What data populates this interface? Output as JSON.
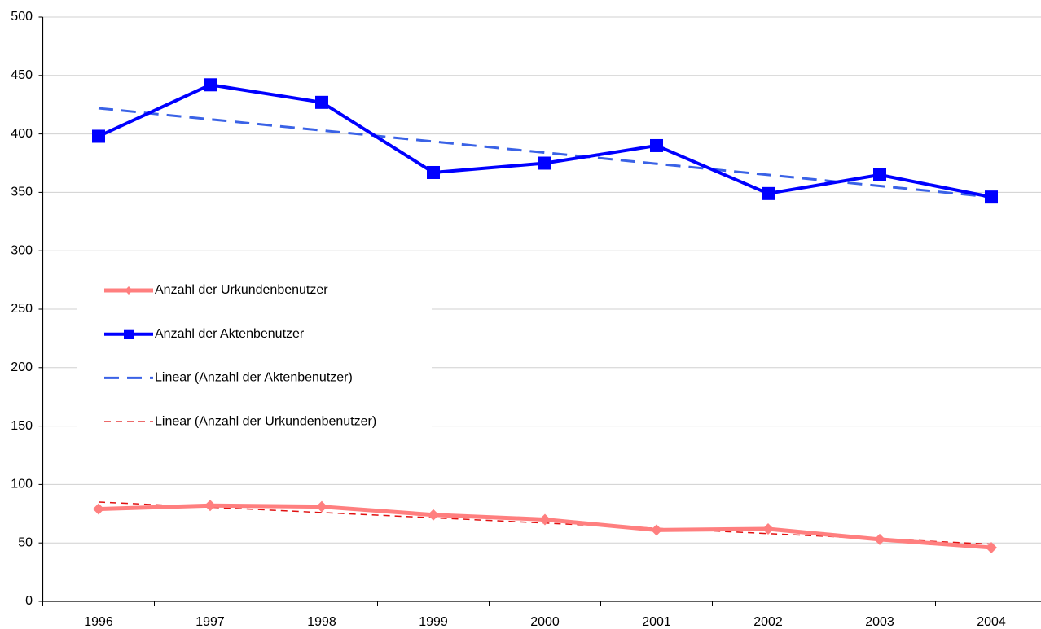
{
  "chart_data": {
    "type": "line",
    "categories": [
      "1996",
      "1997",
      "1998",
      "1999",
      "2000",
      "2001",
      "2002",
      "2003",
      "2004"
    ],
    "series": [
      {
        "name": "Anzahl der Urkundenbenutzer",
        "color": "#ff7f7f",
        "marker": "diamond",
        "dashed": false,
        "values": [
          79,
          82,
          81,
          74,
          70,
          61,
          62,
          53,
          46
        ]
      },
      {
        "name": "Anzahl der Aktenbenutzer",
        "color": "#0000ff",
        "marker": "square",
        "dashed": false,
        "values": [
          398,
          442,
          427,
          367,
          375,
          390,
          349,
          365,
          346
        ]
      },
      {
        "name": "Linear (Anzahl der Aktenbenutzer)",
        "color": "#3a62e6",
        "marker": "none",
        "dashed": true,
        "values": [
          422,
          412.5,
          403,
          393.5,
          384,
          374.5,
          365,
          355.5,
          346
        ]
      },
      {
        "name": "Linear (Anzahl der Urkundenbenutzer)",
        "color": "#e01010",
        "marker": "none",
        "dashed": true,
        "values": [
          85,
          80.5,
          76,
          71.5,
          67,
          62.5,
          58,
          53.5,
          49
        ]
      }
    ],
    "ylim": [
      0,
      500
    ],
    "yticks": [
      0,
      50,
      100,
      150,
      200,
      250,
      300,
      350,
      400,
      450,
      500
    ],
    "grid": true,
    "legend": "left"
  }
}
